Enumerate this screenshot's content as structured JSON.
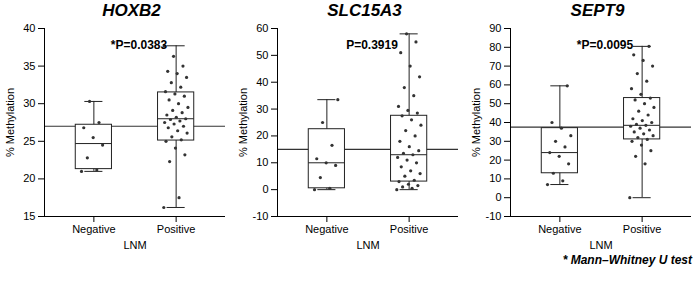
{
  "chart_data": [
    {
      "type": "box",
      "title": "HOXB2",
      "annotation": "*P=0.0383",
      "xlabel": "LNM",
      "ylabel": "% Methylation",
      "categories": [
        "Negative",
        "Positive"
      ],
      "ylim": [
        15,
        40
      ],
      "yticks": [
        15,
        20,
        25,
        30,
        35,
        40
      ],
      "reference_line": 27,
      "boxes": [
        {
          "min": 21,
          "q1": 21.3,
          "median": 24.7,
          "q3": 27.2,
          "max": 30.3
        },
        {
          "min": 16.2,
          "q1": 25.1,
          "median": 28,
          "q3": 31.5,
          "max": 37.7
        }
      ],
      "points": [
        [
          21,
          21.2,
          22.8,
          24.5,
          25.5,
          26.8,
          27.5,
          30.3
        ],
        [
          16.2,
          17.5,
          22.3,
          23.2,
          24.1,
          25.0,
          25.2,
          25.6,
          26.1,
          26.4,
          26.8,
          27.0,
          27.3,
          27.5,
          27.7,
          27.9,
          28.0,
          28.2,
          28.5,
          28.8,
          29.1,
          29.5,
          30.0,
          30.5,
          31.0,
          31.3,
          31.6,
          32.2,
          32.8,
          33.5,
          34.0,
          34.3,
          35.0,
          36.3,
          37.7
        ]
      ]
    },
    {
      "type": "box",
      "title": "SLC15A3",
      "annotation": "P=0.3919",
      "xlabel": "LNM",
      "ylabel": "% Methylation",
      "categories": [
        "Negative",
        "Positive"
      ],
      "ylim": [
        -10,
        60
      ],
      "yticks": [
        -10,
        0,
        10,
        20,
        30,
        40,
        50,
        60
      ],
      "reference_line": 15,
      "boxes": [
        {
          "min": 0,
          "q1": 0.5,
          "median": 10,
          "q3": 22.5,
          "max": 33.5
        },
        {
          "min": 0,
          "q1": 3,
          "median": 13,
          "q3": 27.5,
          "max": 58
        }
      ],
      "points": [
        [
          0,
          0.5,
          4.5,
          9,
          10,
          11.5,
          16.5,
          25,
          33.5
        ],
        [
          0,
          0.5,
          1,
          1.5,
          2,
          3,
          3.5,
          5,
          6,
          7,
          8.5,
          10,
          11,
          12,
          13,
          13.5,
          14.5,
          16,
          18,
          20,
          22,
          24,
          26,
          27.5,
          28.5,
          29.5,
          31,
          35,
          38,
          42,
          46,
          51,
          55,
          58
        ]
      ]
    },
    {
      "type": "box",
      "title": "SEPT9",
      "annotation": "*P=0.0095",
      "xlabel": "LNM",
      "ylabel": "% Methylation",
      "categories": [
        "Negative",
        "Positive"
      ],
      "ylim": [
        -10,
        90
      ],
      "yticks": [
        -10,
        0,
        10,
        20,
        30,
        40,
        50,
        60,
        70,
        80,
        90
      ],
      "reference_line": 37.5,
      "boxes": [
        {
          "min": 7,
          "q1": 13,
          "median": 24,
          "q3": 37,
          "max": 59.5
        },
        {
          "min": 0,
          "q1": 31,
          "median": 38.5,
          "q3": 53,
          "max": 80.5
        }
      ],
      "points": [
        [
          7,
          9,
          13,
          18,
          22,
          24,
          27,
          30,
          33,
          37,
          40,
          59.5
        ],
        [
          0,
          18,
          22,
          25,
          28,
          30,
          31,
          32,
          33,
          34,
          35,
          36,
          37,
          38,
          38.5,
          39,
          40,
          41,
          42,
          44,
          46,
          48,
          50,
          52,
          53,
          55,
          58,
          62,
          66,
          70,
          73,
          76,
          80.5
        ]
      ]
    }
  ],
  "caption": "* Mann–Whitney U test"
}
